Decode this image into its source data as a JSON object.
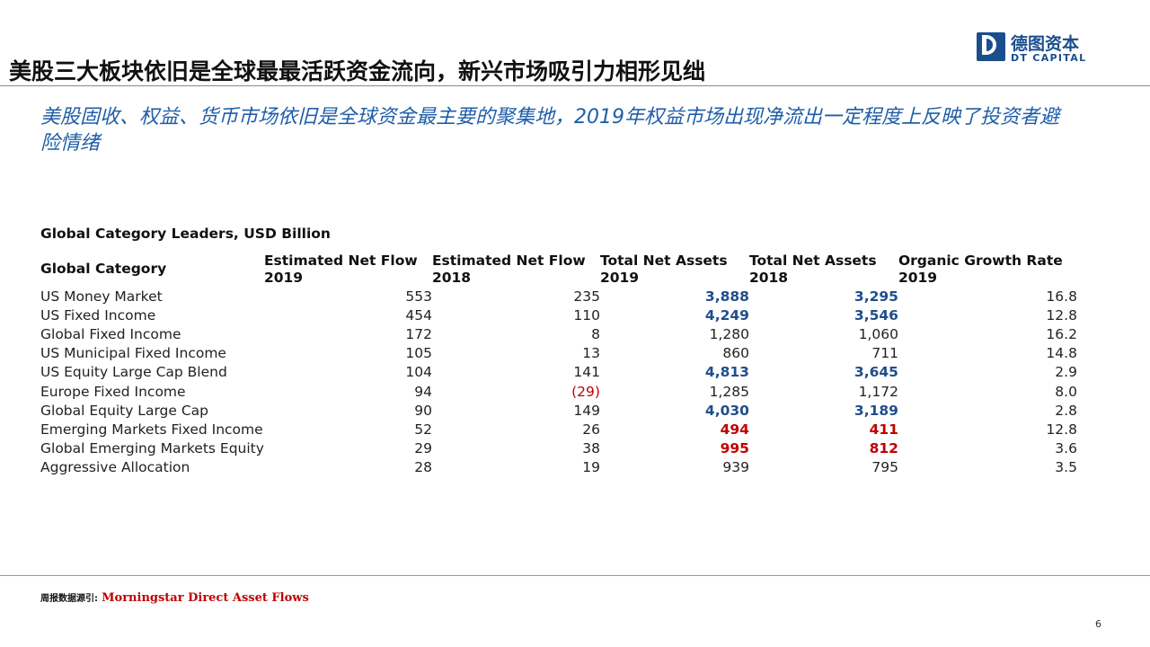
{
  "header": {
    "title": "美股三大板块依旧是全球最最活跃资金流向，新兴市场吸引力相形见绌",
    "logo_cn": "德图资本",
    "logo_en": "DT CAPITAL",
    "brand_color": "#1a4e8c"
  },
  "subtitle": "美股固收、权益、货币市场依旧是全球资金最主要的聚集地，2019年权益市场出现净流出一定程度上反映了投资者避险情绪",
  "table": {
    "caption": "Global Category Leaders, USD Billion",
    "columns": [
      {
        "line1": "Global Category",
        "line2": ""
      },
      {
        "line1": "Estimated Net Flow",
        "line2": "2019"
      },
      {
        "line1": "Estimated Net Flow",
        "line2": "2018"
      },
      {
        "line1": "Total Net Assets",
        "line2": "2019"
      },
      {
        "line1": "Total Net Assets",
        "line2": "2018"
      },
      {
        "line1": "Organic Growth Rate",
        "line2": "2019"
      }
    ],
    "rows": [
      {
        "category": "US Money Market",
        "flow2019": "553",
        "flow2018": "235",
        "tna2019": "3,888",
        "tna2018": "3,295",
        "growth": "16.8",
        "tna_style": "blue"
      },
      {
        "category": "US Fixed Income",
        "flow2019": "454",
        "flow2018": "110",
        "tna2019": "4,249",
        "tna2018": "3,546",
        "growth": "12.8",
        "tna_style": "blue"
      },
      {
        "category": "Global Fixed Income",
        "flow2019": "172",
        "flow2018": "8",
        "tna2019": "1,280",
        "tna2018": "1,060",
        "growth": "16.2",
        "tna_style": "plain"
      },
      {
        "category": "US Municipal Fixed Income",
        "flow2019": "105",
        "flow2018": "13",
        "tna2019": "860",
        "tna2018": "711",
        "growth": "14.8",
        "tna_style": "plain"
      },
      {
        "category": "US Equity Large Cap Blend",
        "flow2019": "104",
        "flow2018": "141",
        "tna2019": "4,813",
        "tna2018": "3,645",
        "growth": "2.9",
        "tna_style": "blue"
      },
      {
        "category": "Europe Fixed Income",
        "flow2019": "94",
        "flow2018": "(29)",
        "tna2019": "1,285",
        "tna2018": "1,172",
        "growth": "8.0",
        "tna_style": "plain",
        "flow2018_negative": true
      },
      {
        "category": "Global Equity Large Cap",
        "flow2019": "90",
        "flow2018": "149",
        "tna2019": "4,030",
        "tna2018": "3,189",
        "growth": "2.8",
        "tna_style": "blue"
      },
      {
        "category": "Emerging Markets Fixed Income",
        "flow2019": "52",
        "flow2018": "26",
        "tna2019": "494",
        "tna2018": "411",
        "growth": "12.8",
        "tna_style": "red"
      },
      {
        "category": "Global Emerging Markets Equity",
        "flow2019": "29",
        "flow2018": "38",
        "tna2019": "995",
        "tna2018": "812",
        "growth": "3.6",
        "tna_style": "red"
      },
      {
        "category": "Aggressive Allocation",
        "flow2019": "28",
        "flow2018": "19",
        "tna2019": "939",
        "tna2018": "795",
        "growth": "3.5",
        "tna_style": "plain"
      }
    ],
    "colors": {
      "highlight_blue": "#1f4e8c",
      "highlight_red": "#c00000"
    }
  },
  "footer": {
    "source_label": "周报数据源引:",
    "source_text": "Morningstar Direct Asset Flows",
    "page_number": "6"
  }
}
